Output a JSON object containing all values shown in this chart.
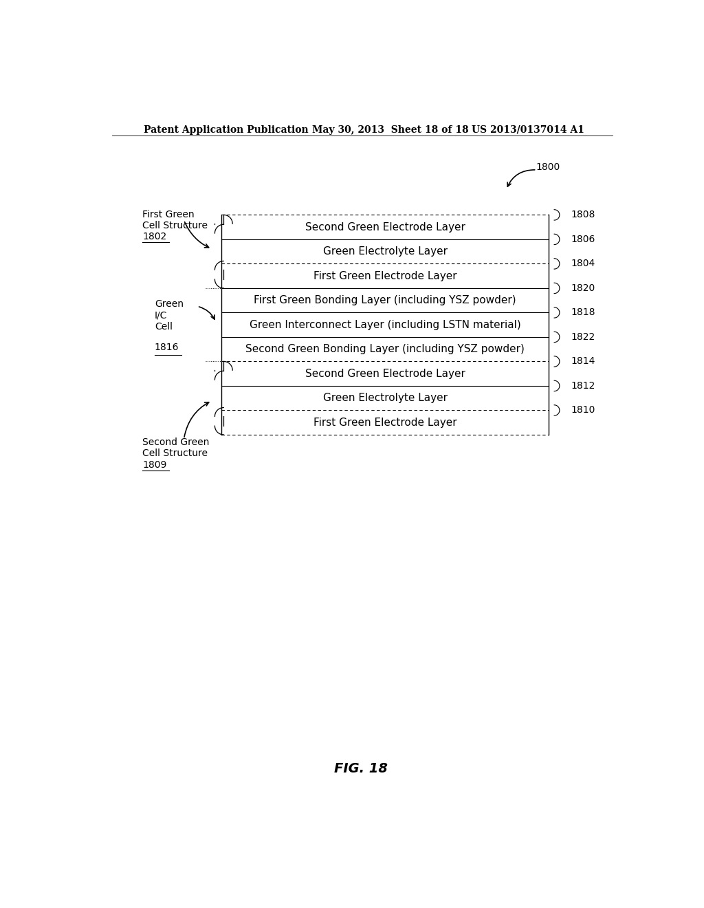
{
  "title_left": "Patent Application Publication",
  "title_mid": "May 30, 2013  Sheet 18 of 18",
  "title_right": "US 2013/0137014 A1",
  "fig_label": "FIG. 18",
  "diagram_ref": "1800",
  "layers": [
    {
      "label": "Second Green Electrode Layer",
      "num": "1808",
      "border": "dashed"
    },
    {
      "label": "Green Electrolyte Layer",
      "num": "1806",
      "border": "solid"
    },
    {
      "label": "First Green Electrode Layer",
      "num": "1804",
      "border": "dashed"
    },
    {
      "label": "First Green Bonding Layer (including YSZ powder)",
      "num": "1820",
      "border": "solid"
    },
    {
      "label": "Green Interconnect Layer (including LSTN material)",
      "num": "1818",
      "border": "solid"
    },
    {
      "label": "Second Green Bonding Layer (including YSZ powder)",
      "num": "1822",
      "border": "solid"
    },
    {
      "label": "Second Green Electrode Layer",
      "num": "1814",
      "border": "dashed"
    },
    {
      "label": "Green Electrolyte Layer",
      "num": "1812",
      "border": "solid"
    },
    {
      "label": "First Green Electrode Layer",
      "num": "1810",
      "border": "dashed"
    }
  ],
  "bg_color": "#ffffff",
  "text_color": "#000000",
  "header_fontsize": 10,
  "layer_fontsize": 11,
  "label_fontsize": 10,
  "ref_fontsize": 10
}
